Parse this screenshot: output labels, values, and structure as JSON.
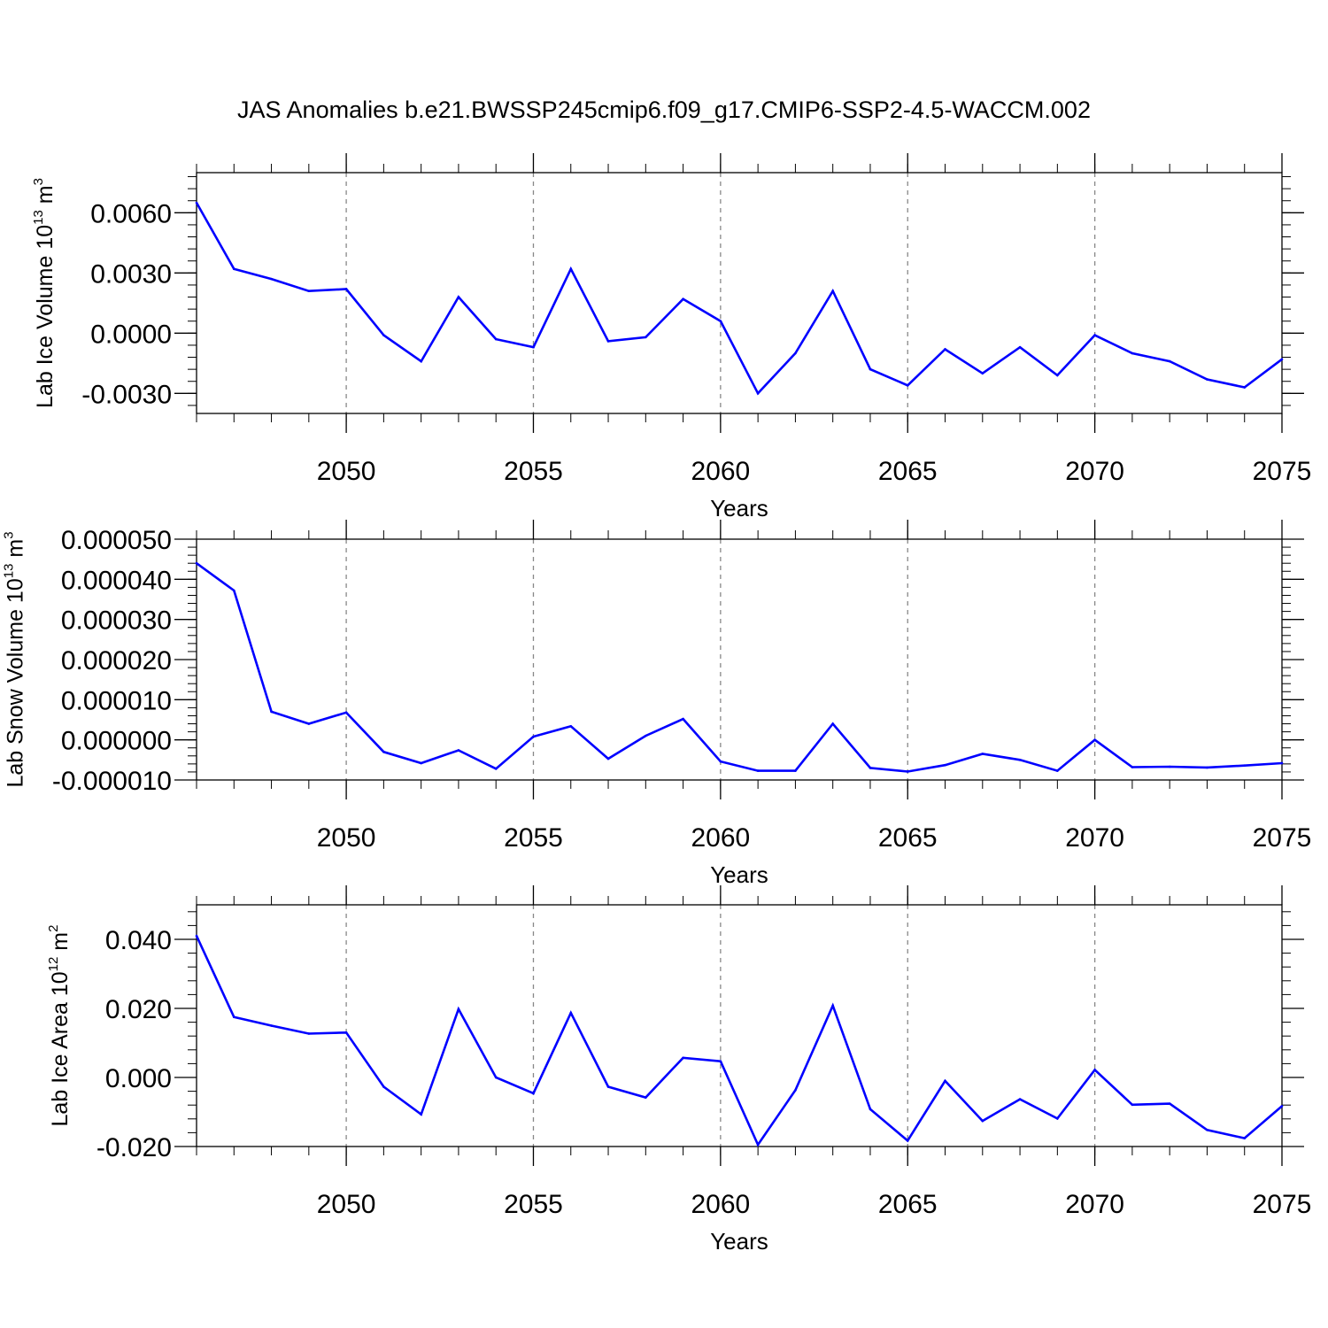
{
  "figure": {
    "title": "JAS Anomalies b.e21.BWSSP245cmip6.f09_g17.CMIP6-SSP2-4.5-WACCM.002"
  },
  "colors": {
    "line": "#0000ff",
    "axis": "#000000",
    "grid": "#888888"
  },
  "chart_data": [
    {
      "type": "line",
      "ylabel": {
        "text": "Lab Ice Volume 10",
        "sup": "13",
        "unit": " m",
        "unit_sup": "3"
      },
      "xlabel": "Years",
      "xlim": [
        2046,
        2075
      ],
      "ylim": [
        -0.004,
        0.008
      ],
      "yticks": [
        -0.003,
        0.0,
        0.003,
        0.006
      ],
      "ytick_labels": [
        "-0.0030",
        "0.0000",
        "0.0030",
        "0.0060"
      ],
      "xticks": [
        2050,
        2055,
        2060,
        2065,
        2070,
        2075
      ],
      "xtick_labels": [
        "2050",
        "2055",
        "2060",
        "2065",
        "2070",
        "2075"
      ],
      "x": [
        2046,
        2047,
        2048,
        2049,
        2050,
        2051,
        2052,
        2053,
        2054,
        2055,
        2056,
        2057,
        2058,
        2059,
        2060,
        2061,
        2062,
        2063,
        2064,
        2065,
        2066,
        2067,
        2068,
        2069,
        2070,
        2071,
        2072,
        2073,
        2074,
        2075
      ],
      "values": [
        0.0065,
        0.0032,
        0.0027,
        0.0021,
        0.0022,
        -0.0001,
        -0.0014,
        0.0018,
        -0.0003,
        -0.0007,
        0.0032,
        -0.0004,
        -0.0002,
        0.0017,
        0.0006,
        -0.003,
        -0.001,
        0.0021,
        -0.0018,
        -0.0026,
        -0.0008,
        -0.002,
        -0.0007,
        -0.0021,
        -0.0001,
        -0.001,
        -0.0014,
        -0.0023,
        -0.0027,
        -0.0013
      ]
    },
    {
      "type": "line",
      "ylabel": {
        "text": "Lab Snow Volume 10",
        "sup": "13",
        "unit": " m",
        "unit_sup": "3"
      },
      "xlabel": "Years",
      "xlim": [
        2046,
        2075
      ],
      "ylim": [
        -1e-05,
        5e-05
      ],
      "yticks": [
        -1e-05,
        0.0,
        1e-05,
        2e-05,
        3e-05,
        4e-05,
        5e-05
      ],
      "ytick_labels": [
        "-0.000010",
        "0.000000",
        "0.000010",
        "0.000020",
        "0.000030",
        "0.000040",
        "0.000050"
      ],
      "xticks": [
        2050,
        2055,
        2060,
        2065,
        2070,
        2075
      ],
      "xtick_labels": [
        "2050",
        "2055",
        "2060",
        "2065",
        "2070",
        "2075"
      ],
      "x": [
        2046,
        2047,
        2048,
        2049,
        2050,
        2051,
        2052,
        2053,
        2054,
        2055,
        2056,
        2057,
        2058,
        2059,
        2060,
        2061,
        2062,
        2063,
        2064,
        2065,
        2066,
        2067,
        2068,
        2069,
        2070,
        2071,
        2072,
        2073,
        2074,
        2075
      ],
      "values": [
        4.4e-05,
        3.72e-05,
        7e-06,
        4e-06,
        6.8e-06,
        -3e-06,
        -5.8e-06,
        -2.6e-06,
        -7.2e-06,
        8e-07,
        3.4e-06,
        -4.7e-06,
        1e-06,
        5.2e-06,
        -5.4e-06,
        -7.7e-06,
        -7.7e-06,
        4e-06,
        -7e-06,
        -7.9e-06,
        -6.3e-06,
        -3.5e-06,
        -5e-06,
        -7.7e-06,
        0.0,
        -6.8e-06,
        -6.7e-06,
        -6.9e-06,
        -6.4e-06,
        -5.8e-06
      ]
    },
    {
      "type": "line",
      "ylabel": {
        "text": "Lab Ice Area 10",
        "sup": "12",
        "unit": " m",
        "unit_sup": "2"
      },
      "xlabel": "Years",
      "xlim": [
        2046,
        2075
      ],
      "ylim": [
        -0.02,
        0.05
      ],
      "yticks": [
        -0.02,
        0.0,
        0.02,
        0.04
      ],
      "ytick_labels": [
        "-0.020",
        "0.000",
        "0.020",
        "0.040"
      ],
      "xticks": [
        2050,
        2055,
        2060,
        2065,
        2070,
        2075
      ],
      "xtick_labels": [
        "2050",
        "2055",
        "2060",
        "2065",
        "2070",
        "2075"
      ],
      "x": [
        2046,
        2047,
        2048,
        2049,
        2050,
        2051,
        2052,
        2053,
        2054,
        2055,
        2056,
        2057,
        2058,
        2059,
        2060,
        2061,
        2062,
        2063,
        2064,
        2065,
        2066,
        2067,
        2068,
        2069,
        2070,
        2071,
        2072,
        2073,
        2074,
        2075
      ],
      "values": [
        0.041,
        0.0175,
        0.015,
        0.0127,
        0.013,
        -0.0027,
        -0.0107,
        0.0198,
        0.0,
        -0.0046,
        0.0187,
        -0.0027,
        -0.0058,
        0.0057,
        0.0047,
        -0.0195,
        -0.0037,
        0.0208,
        -0.0092,
        -0.0183,
        -0.001,
        -0.0126,
        -0.0063,
        -0.0119,
        0.0022,
        -0.0079,
        -0.0076,
        -0.0152,
        -0.0176,
        -0.0083
      ]
    }
  ]
}
